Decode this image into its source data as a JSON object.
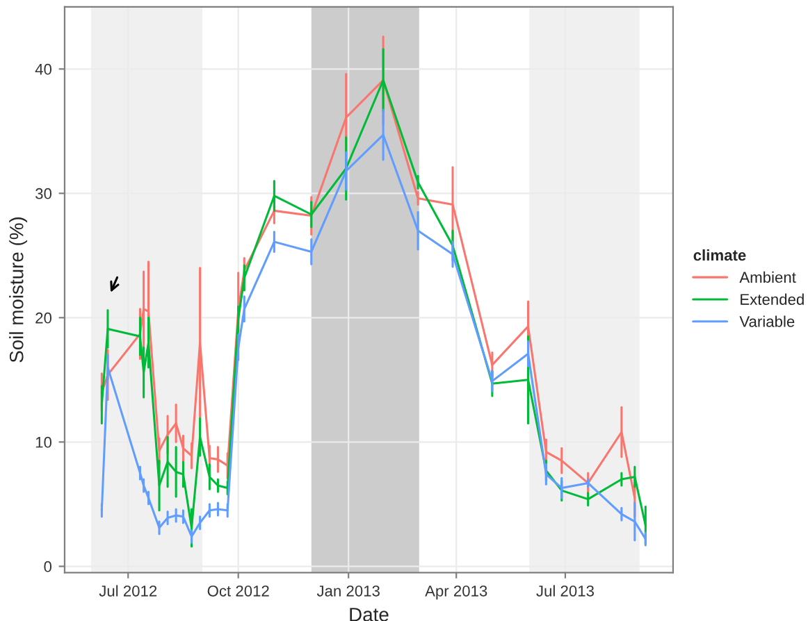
{
  "chart_data": {
    "type": "line",
    "xlabel": "Date",
    "ylabel": "Soil moisture (%)",
    "legend_title": "climate",
    "x": [
      "2012-06-09",
      "2012-06-14",
      "2012-07-11",
      "2012-07-14",
      "2012-07-18",
      "2012-07-27",
      "2012-08-03",
      "2012-08-10",
      "2012-08-16",
      "2012-08-23",
      "2012-08-30",
      "2012-09-07",
      "2012-09-14",
      "2012-09-22",
      "2012-10-01",
      "2012-10-06",
      "2012-10-31",
      "2012-12-01",
      "2012-12-30",
      "2013-01-30",
      "2013-02-28",
      "2013-03-29",
      "2013-05-01",
      "2013-05-31",
      "2013-06-15",
      "2013-06-28",
      "2013-07-20",
      "2013-08-17",
      "2013-08-28",
      "2013-09-06"
    ],
    "series": [
      {
        "name": "Ambient",
        "color": "#f8766d",
        "values": [
          14.0,
          15.4,
          18.7,
          20.7,
          20.5,
          9.3,
          10.6,
          11.5,
          9.5,
          8.9,
          18.0,
          8.7,
          8.6,
          8.1,
          20.6,
          23.8,
          28.6,
          28.2,
          36.1,
          39.1,
          29.6,
          29.1,
          16.2,
          19.3,
          9.2,
          8.5,
          6.7,
          10.8,
          5.5,
          null
        ],
        "errors": [
          1.5,
          2,
          2,
          3,
          4,
          1,
          1.5,
          1.5,
          1,
          1,
          6,
          1,
          1,
          1,
          3,
          1,
          1,
          1.5,
          3.5,
          3.5,
          0.5,
          3,
          1,
          2,
          1,
          1,
          0.8,
          2,
          1.5,
          null
        ]
      },
      {
        "name": "Extended",
        "color": "#00ba38",
        "values": [
          13.0,
          19.1,
          18.5,
          15.6,
          18.0,
          6.5,
          8.4,
          7.6,
          7.4,
          3.1,
          10.4,
          7.2,
          6.5,
          6.3,
          19.9,
          23.2,
          29.8,
          28.3,
          32.0,
          39.1,
          30.9,
          25.8,
          14.7,
          15.0,
          7.7,
          6.1,
          5.4,
          7.0,
          7.2,
          3.3
        ],
        "errors": [
          1.5,
          1.5,
          1.5,
          2,
          2,
          2,
          2,
          2,
          1,
          1.5,
          1.5,
          1,
          0.5,
          0.5,
          1,
          1,
          1.2,
          1,
          2.5,
          2.5,
          0.5,
          1.2,
          1,
          3.5,
          0.8,
          0.8,
          0.5,
          0.5,
          0.8,
          1.5
        ]
      },
      {
        "name": "Variable",
        "color": "#619cff",
        "values": [
          4.5,
          16.0,
          7.5,
          6.5,
          5.5,
          3.1,
          3.9,
          4.1,
          4.0,
          2.4,
          3.5,
          4.5,
          4.6,
          4.5,
          17.6,
          20.7,
          26.1,
          25.3,
          31.8,
          34.7,
          27.0,
          25.1,
          14.9,
          17.1,
          7.4,
          6.3,
          6.7,
          4.2,
          3.6,
          2.2
        ],
        "errors": [
          0.5,
          1,
          0.5,
          0.5,
          0.5,
          0.5,
          0.5,
          0.5,
          0.5,
          0.5,
          0.5,
          0.5,
          0.5,
          0.5,
          1,
          1,
          0.8,
          1,
          1.5,
          2,
          1.5,
          1,
          0.8,
          1,
          0.8,
          0.8,
          0.3,
          0.5,
          1.5,
          0.5
        ]
      }
    ],
    "xlim": [
      "2012-05-09",
      "2013-09-29"
    ],
    "xticks": [
      {
        "value": "2012-07-01",
        "label": "Jul 2012"
      },
      {
        "value": "2012-10-01",
        "label": "Oct 2012"
      },
      {
        "value": "2013-01-01",
        "label": "Jan 2013"
      },
      {
        "value": "2013-04-01",
        "label": "Apr 2013"
      },
      {
        "value": "2013-07-01",
        "label": "Jul 2013"
      }
    ],
    "ylim": [
      -0.5,
      45
    ],
    "yticks": [
      0,
      10,
      20,
      30,
      40
    ],
    "bands": [
      {
        "axis": "x",
        "from": "2012-05-31",
        "to": "2012-09-01",
        "color": "#f0f0f0"
      },
      {
        "axis": "x",
        "from": "2012-12-01",
        "to": "2013-03-01",
        "color": "#cccccc"
      },
      {
        "axis": "x",
        "from": "2013-06-01",
        "to": "2013-09-01",
        "color": "#f0f0f0"
      }
    ],
    "grid": true,
    "legend": "right",
    "marker": "none",
    "line_style": "solid"
  }
}
